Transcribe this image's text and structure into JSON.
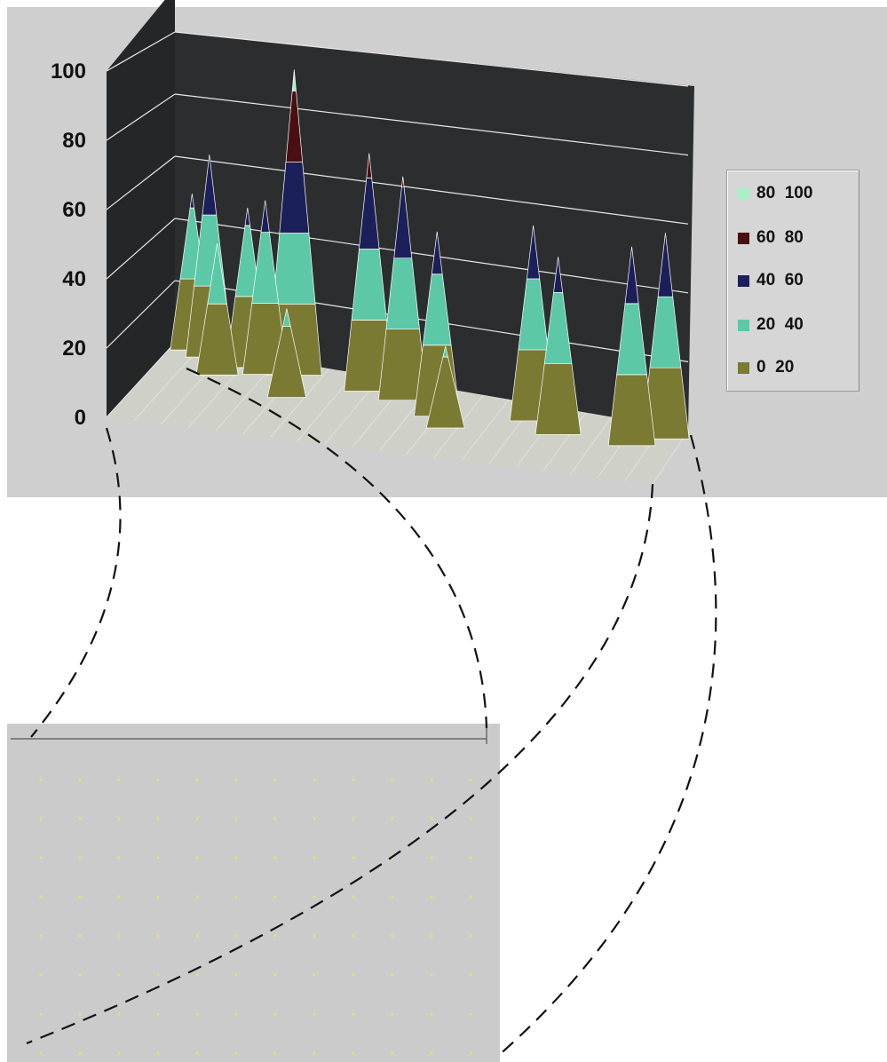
{
  "chart_data": {
    "type": "surface",
    "title": "",
    "xlabel": "",
    "ylabel": "",
    "zlim": [
      0,
      100
    ],
    "z_ticks": [
      "0",
      "20",
      "40",
      "60",
      "80",
      "100"
    ],
    "grid": true,
    "legend_placement": "right",
    "bands": [
      {
        "label": "80  100",
        "range": [
          80,
          100
        ],
        "color": "#a8f0c8"
      },
      {
        "label": "60  80",
        "range": [
          60,
          80
        ],
        "color": "#4a0f12"
      },
      {
        "label": "40  60",
        "range": [
          40,
          60
        ],
        "color": "#1b1f5a"
      },
      {
        "label": "20  40",
        "range": [
          20,
          40
        ],
        "color": "#5cc8a8"
      },
      {
        "label": "0  20",
        "range": [
          0,
          20
        ],
        "color": "#7a7a32"
      }
    ],
    "peaks": [
      {
        "row": 0.05,
        "col": 0.04,
        "value": 44
      },
      {
        "row": 0.1,
        "col": 0.08,
        "value": 57
      },
      {
        "row": 0.3,
        "col": 0.12,
        "value": 37
      },
      {
        "row": 0.15,
        "col": 0.16,
        "value": 45
      },
      {
        "row": 0.2,
        "col": 0.2,
        "value": 49
      },
      {
        "row": 0.15,
        "col": 0.25,
        "value": 86
      },
      {
        "row": 0.45,
        "col": 0.27,
        "value": 25
      },
      {
        "row": 0.2,
        "col": 0.4,
        "value": 67
      },
      {
        "row": 0.25,
        "col": 0.47,
        "value": 63
      },
      {
        "row": 0.4,
        "col": 0.55,
        "value": 52
      },
      {
        "row": 0.55,
        "col": 0.58,
        "value": 23
      },
      {
        "row": 0.25,
        "col": 0.72,
        "value": 55
      },
      {
        "row": 0.4,
        "col": 0.78,
        "value": 50
      },
      {
        "row": 0.4,
        "col": 0.92,
        "value": 56
      },
      {
        "row": 0.2,
        "col": 0.97,
        "value": 58
      }
    ]
  },
  "legend": {
    "items": [
      {
        "label": "80  100",
        "color": "#a8f0c8"
      },
      {
        "label": "60  80",
        "color": "#4a0f12"
      },
      {
        "label": "40  60",
        "color": "#1b1f5a"
      },
      {
        "label": "20  40",
        "color": "#5cc8a8"
      },
      {
        "label": "0  20",
        "color": "#7a7a32"
      }
    ]
  },
  "colors": {
    "back_wall": "#2b2d2f",
    "floor": "#cfd0c8",
    "panel": "#cfcfcf",
    "zoom_panel": "#cbcbcb",
    "grid_line": "#e8e8e8",
    "zoom_dot": "#e6e07a"
  }
}
